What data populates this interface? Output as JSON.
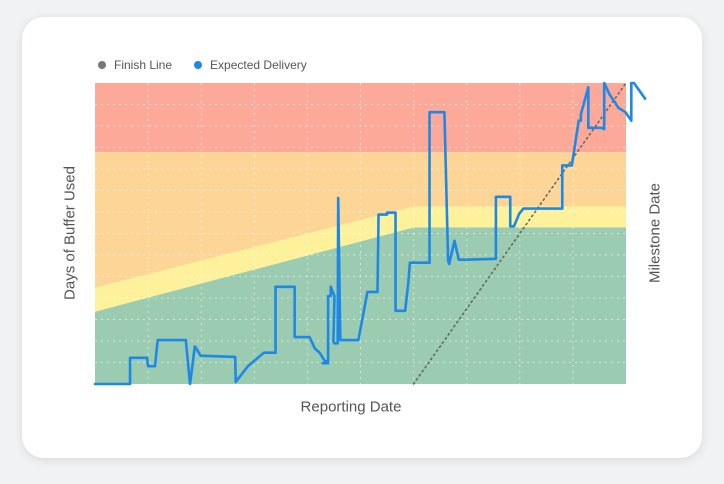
{
  "chart_data": {
    "type": "line",
    "title": "",
    "xlabel": "Reporting Date",
    "ylabel": "Days of Buffer Used",
    "y2label": "Milestone Date",
    "ylim": [
      0,
      100
    ],
    "grid": true,
    "legend_position": "top-left",
    "zones": [
      {
        "name": "red",
        "color": "#fda99a",
        "lower": [
          77,
          77
        ],
        "upper": [
          100,
          100
        ]
      },
      {
        "name": "orange",
        "color": "#fdd597",
        "lower": [
          0,
          0
        ],
        "upper": [
          77,
          77
        ]
      },
      {
        "name": "yellow",
        "color": "#fdf29b",
        "lower": [
          0,
          0
        ],
        "upper": [
          32,
          59
        ]
      },
      {
        "name": "green",
        "color": "#9bcbb0",
        "lower": [
          0,
          0
        ],
        "upper": [
          24,
          52
        ]
      }
    ],
    "zone_breakpoints_x": [
      0,
      60,
      100
    ],
    "zone_upper_points": {
      "yellow": [
        [
          0,
          32
        ],
        [
          60,
          59
        ],
        [
          100,
          59
        ]
      ],
      "green": [
        [
          0,
          24
        ],
        [
          60,
          52
        ],
        [
          100,
          52
        ]
      ]
    },
    "series": [
      {
        "name": "Finish Line",
        "color": "#777777",
        "style": "dotted",
        "points": [
          [
            60,
            0
          ],
          [
            100,
            100
          ]
        ]
      },
      {
        "name": "Expected Delivery",
        "color": "#1e88e5",
        "style": "solid",
        "points": [
          [
            0,
            0
          ],
          [
            6.6,
            0
          ],
          [
            6.6,
            8.7
          ],
          [
            9.8,
            8.7
          ],
          [
            10,
            5.9
          ],
          [
            11.3,
            5.9
          ],
          [
            11.8,
            14.6
          ],
          [
            17.1,
            14.6
          ],
          [
            17.9,
            0
          ],
          [
            18.8,
            12.5
          ],
          [
            19.9,
            9.4
          ],
          [
            26.4,
            9.0
          ],
          [
            26.5,
            0.7
          ],
          [
            28.8,
            5.9
          ],
          [
            31.8,
            10.4
          ],
          [
            34,
            10.4
          ],
          [
            34,
            32.3
          ],
          [
            35.4,
            32.3
          ],
          [
            35.4,
            32.3
          ],
          [
            37.6,
            32.3
          ],
          [
            37.6,
            15.6
          ],
          [
            40.4,
            15.6
          ],
          [
            41.4,
            11.8
          ],
          [
            42.3,
            10.4
          ],
          [
            43.3,
            7.6
          ],
          [
            43.6,
            7.6
          ],
          [
            43.9,
            6.9
          ],
          [
            42.9,
            6.9
          ],
          [
            43.9,
            6.9
          ],
          [
            43.9,
            29.2
          ],
          [
            44.4,
            29.2
          ],
          [
            44.4,
            32.3
          ],
          [
            45.1,
            29.2
          ],
          [
            44.9,
            14.2
          ],
          [
            45.1,
            13.5
          ],
          [
            45.7,
            13.5
          ],
          [
            45.8,
            61.8
          ],
          [
            46.2,
            14.6
          ],
          [
            49.6,
            14.6
          ],
          [
            49.6,
            14.6
          ],
          [
            51.3,
            30.6
          ],
          [
            53.2,
            30.6
          ],
          [
            53.4,
            56.3
          ],
          [
            55,
            56.3
          ],
          [
            55,
            56.9
          ],
          [
            56.6,
            56.9
          ],
          [
            56.6,
            24.3
          ],
          [
            58.4,
            24.3
          ],
          [
            59,
            33.6
          ],
          [
            59.3,
            40.3
          ],
          [
            60.2,
            40.3
          ],
          [
            63,
            40.3
          ],
          [
            63,
            90.3
          ],
          [
            65.8,
            90.3
          ],
          [
            66.5,
            40.9
          ],
          [
            66.7,
            39.9
          ],
          [
            67.7,
            47.6
          ],
          [
            68.5,
            41.3
          ],
          [
            69.9,
            41.3
          ],
          [
            75.5,
            41.6
          ],
          [
            75.5,
            62.2
          ],
          [
            78.2,
            62.2
          ],
          [
            78.2,
            52.4
          ],
          [
            78.2,
            52.4
          ],
          [
            78.9,
            52.4
          ],
          [
            79.9,
            56.6
          ],
          [
            80.7,
            58.3
          ],
          [
            88,
            58.3
          ],
          [
            88,
            72.6
          ],
          [
            88,
            72.6
          ],
          [
            89.2,
            72.6
          ],
          [
            89.2,
            72.6
          ],
          [
            89.8,
            72.6
          ],
          [
            89.8,
            72.6
          ],
          [
            91.1,
            87.5
          ],
          [
            91.1,
            87.5
          ],
          [
            91.5,
            87.5
          ],
          [
            91.5,
            89.6
          ],
          [
            92.9,
            98.6
          ],
          [
            92.9,
            85.1
          ],
          [
            95.5,
            85.1
          ],
          [
            95.8,
            84.7
          ],
          [
            95.9,
            84.7
          ],
          [
            95.9,
            100
          ],
          [
            96.9,
            96.2
          ],
          [
            97.7,
            94.1
          ],
          [
            98.1,
            93.1
          ],
          [
            98.6,
            91.7
          ],
          [
            99.9,
            90.3
          ],
          [
            101,
            87.5
          ],
          [
            101,
            100
          ],
          [
            101.5,
            100
          ],
          [
            103.6,
            94.8
          ]
        ]
      }
    ]
  },
  "legend": [
    {
      "label": "Finish Line",
      "color": "#777777"
    },
    {
      "label": "Expected Delivery",
      "color": "#1e88e5"
    }
  ]
}
